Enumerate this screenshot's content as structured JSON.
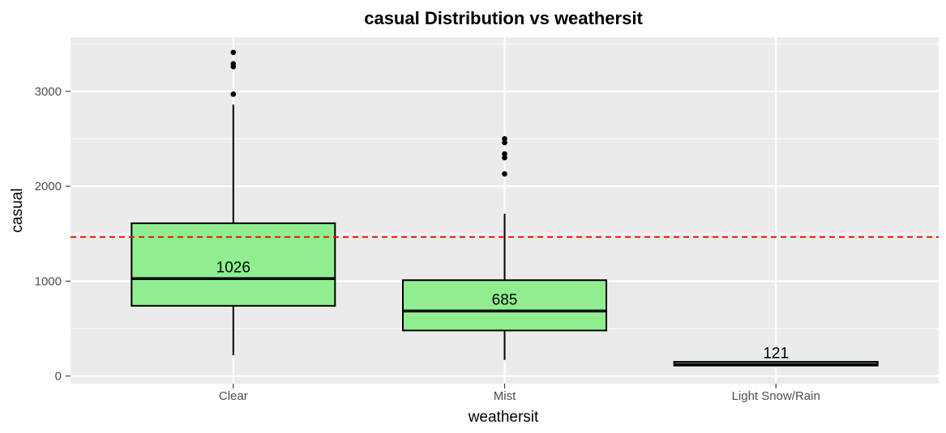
{
  "chart_data": {
    "type": "boxplot",
    "title": "casual  Distribution vs  weathersit",
    "xlabel": "weathersit",
    "ylabel": "casual",
    "categories": [
      "Clear",
      "Mist",
      "Light Snow/Rain"
    ],
    "ylim": [
      -80,
      3570
    ],
    "yticks": [
      0,
      1000,
      2000,
      3000
    ],
    "yticks_labels": [
      "0",
      "1000",
      "2000",
      "3000"
    ],
    "boxes": [
      {
        "category": "Clear",
        "whisker_low": 220,
        "q1": 740,
        "median": 1026,
        "q3": 1610,
        "whisker_high": 2860,
        "outliers": [
          2970,
          3260,
          3290,
          3410
        ],
        "median_label": "1026"
      },
      {
        "category": "Mist",
        "whisker_low": 170,
        "q1": 480,
        "median": 685,
        "q3": 1010,
        "whisker_high": 1710,
        "outliers": [
          2130,
          2300,
          2340,
          2460,
          2500
        ],
        "median_label": "685"
      },
      {
        "category": "Light Snow/Rain",
        "whisker_low": 110,
        "q1": 110,
        "median": 121,
        "q3": 150,
        "whisker_high": 160,
        "outliers": [],
        "median_label": "121"
      }
    ],
    "reference_line": {
      "value": 1465,
      "color": "#ff0000",
      "style": "dashed"
    },
    "box_fill": "#90ee90",
    "panel_background": "#ebebeb",
    "grid": true
  }
}
